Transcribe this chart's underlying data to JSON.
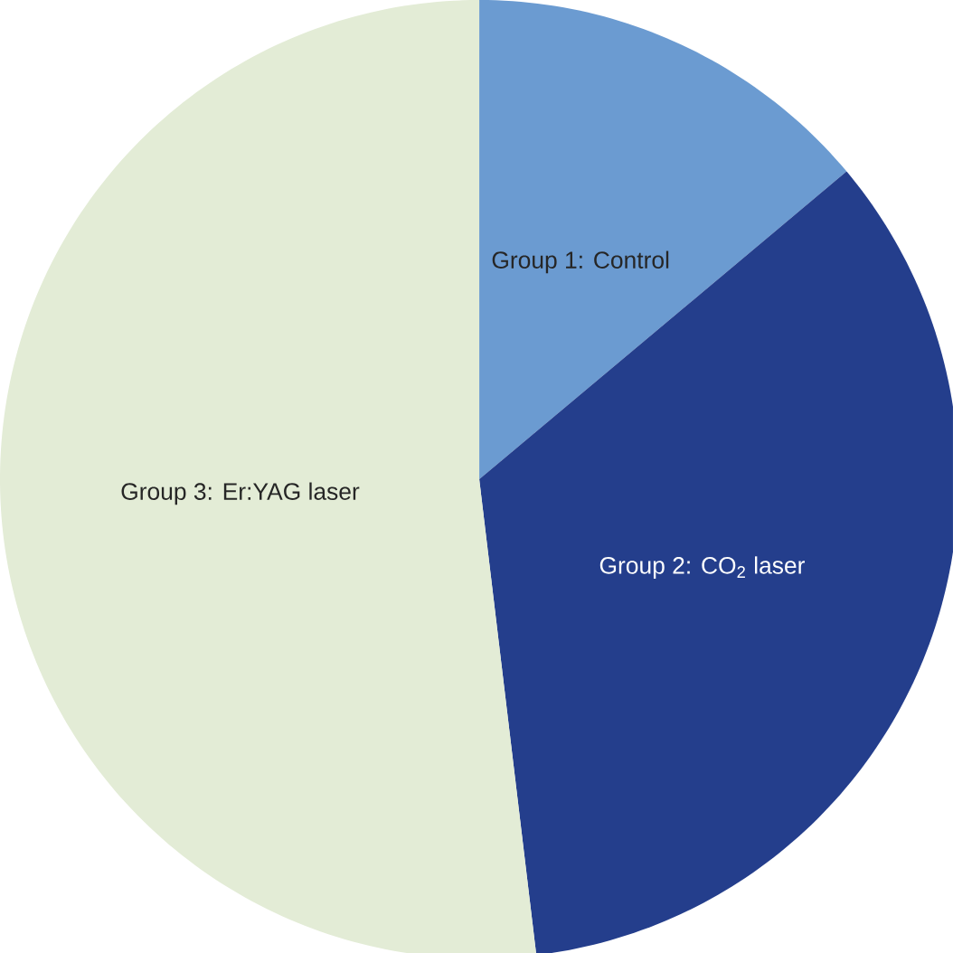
{
  "chart_data": {
    "type": "pie",
    "categories": [
      "Group 1: Control",
      "Group 2: CO$_{2}$ laser",
      "Group 3: Er:YAG laser"
    ],
    "values": [
      13.9,
      34.2,
      51.9
    ],
    "colors": [
      "#6b9bd1",
      "#243e8c",
      "#e3ecd6"
    ]
  }
}
